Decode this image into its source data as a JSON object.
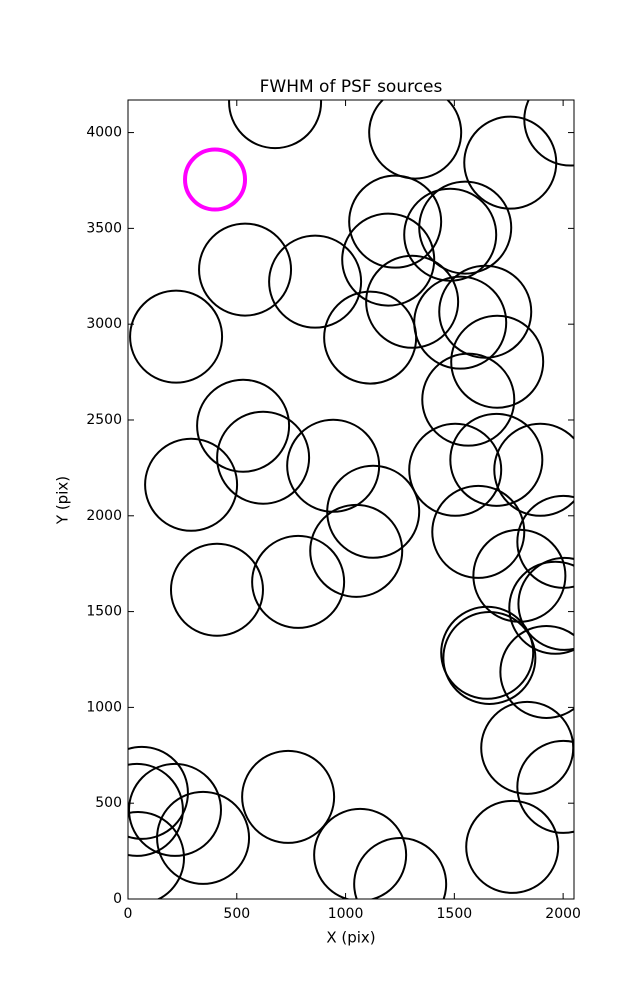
{
  "chart_data": {
    "type": "scatter",
    "title": "FWHM of PSF sources",
    "xlabel": "X (pix)",
    "ylabel": "Y (pix)",
    "xlim": [
      0,
      2050
    ],
    "ylim": [
      0,
      4170
    ],
    "xticks": [
      0,
      500,
      1000,
      1500,
      2000
    ],
    "yticks": [
      0,
      500,
      1000,
      1500,
      2000,
      2500,
      3000,
      3500,
      4000
    ],
    "series": [
      {
        "color": "#000000",
        "x": [
          676,
          1320,
          1757,
          2033,
          1228,
          1550,
          1481,
          538,
          860,
          1196,
          1306,
          221,
          1113,
          1527,
          1642,
          1697,
          1564,
          529,
          621,
          943,
          1504,
          1693,
          1895,
          290,
          1127,
          1610,
          2001,
          1049,
          409,
          782,
          1799,
          2006,
          1964,
          1651,
          1661,
          1923,
          1835,
          2001,
          64,
          41,
          216,
          345,
          736,
          1067,
          1251,
          1766,
          46
        ],
        "y": [
          4159,
          4000,
          3843,
          4068,
          3535,
          3504,
          3467,
          3285,
          3222,
          3337,
          3117,
          2935,
          2930,
          3008,
          3065,
          2804,
          2606,
          2470,
          2303,
          2261,
          2240,
          2292,
          2240,
          2162,
          2021,
          1916,
          1864,
          1817,
          1614,
          1655,
          1687,
          1540,
          1520,
          1285,
          1258,
          1185,
          789,
          585,
          554,
          465,
          465,
          319,
          533,
          230,
          78,
          272,
          214
        ]
      },
      {
        "color": "#ff00ff",
        "x": [
          400
        ],
        "y": [
          3755
        ]
      }
    ]
  }
}
